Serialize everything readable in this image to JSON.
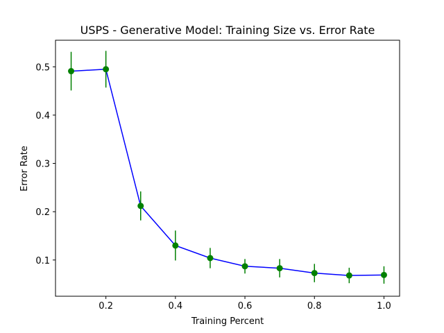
{
  "chart_data": {
    "type": "line",
    "title": "USPS - Generative Model: Training Size vs. Error Rate",
    "xlabel": "Training Percent",
    "ylabel": "Error Rate",
    "xlim": [
      0.055,
      1.045
    ],
    "ylim": [
      0.025,
      0.555
    ],
    "xticks": [
      0.2,
      0.4,
      0.6,
      0.8,
      1.0
    ],
    "xtick_labels": [
      "0.2",
      "0.4",
      "0.6",
      "0.8",
      "1.0"
    ],
    "yticks": [
      0.1,
      0.2,
      0.3,
      0.4,
      0.5
    ],
    "ytick_labels": [
      "0.1",
      "0.2",
      "0.3",
      "0.4",
      "0.5"
    ],
    "grid": false,
    "legend": "none",
    "series": [
      {
        "x": [
          0.1,
          0.2,
          0.3,
          0.4,
          0.5,
          0.6,
          0.7,
          0.8,
          0.9,
          1.0
        ],
        "y": [
          0.491,
          0.495,
          0.212,
          0.13,
          0.104,
          0.087,
          0.083,
          0.073,
          0.068,
          0.069
        ],
        "yerr": [
          0.04,
          0.038,
          0.03,
          0.031,
          0.021,
          0.015,
          0.019,
          0.019,
          0.016,
          0.018
        ],
        "line_color": "#0000ff",
        "marker_color": "#008000",
        "errorbar_color": "#008000"
      }
    ]
  }
}
